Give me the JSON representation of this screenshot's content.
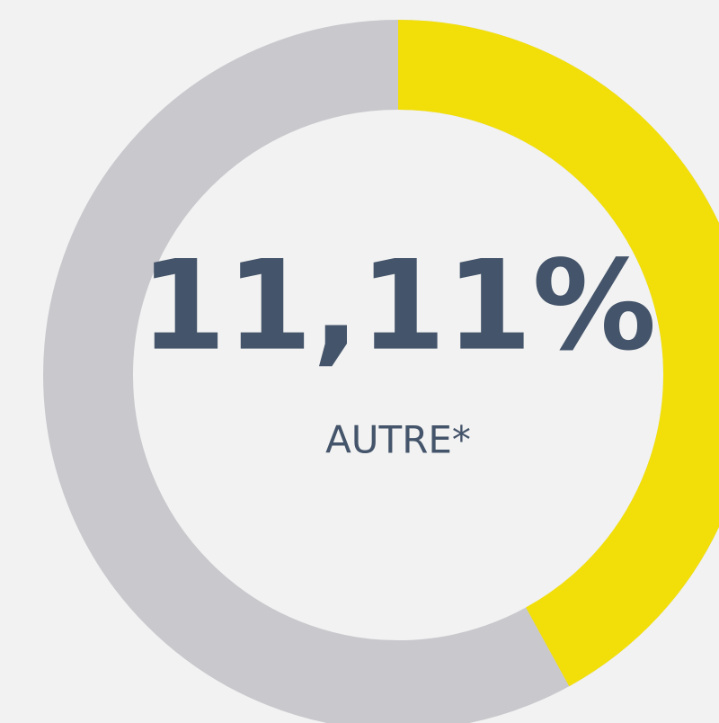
{
  "gauge": {
    "value_label": "11,11%",
    "label": "AUTRE*",
    "fill_percent": 42,
    "fill_color": "#f2df0a",
    "track_color": "#c9c8cd",
    "text_color": "#44546a"
  }
}
